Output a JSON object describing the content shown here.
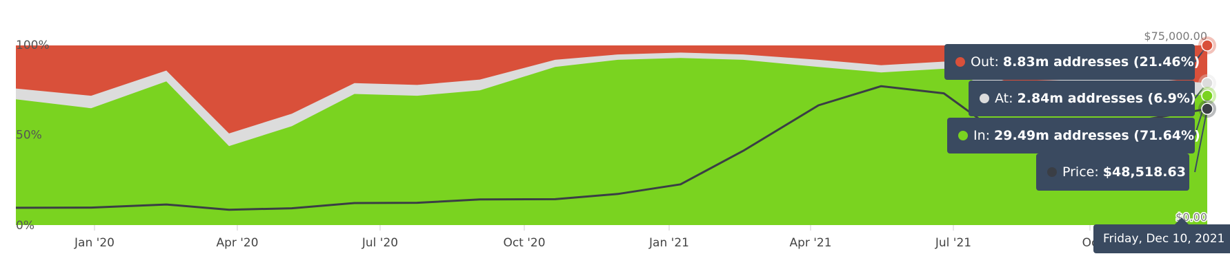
{
  "chart_data": {
    "type": "area",
    "stacking": "percent",
    "x_ticks": [
      "Jan '20",
      "Apr '20",
      "Jul '20",
      "Oct '20",
      "Jan '21",
      "Apr '21",
      "Jul '21",
      "Oc"
    ],
    "y_ticks_left": [
      "0%",
      "50%",
      "100%"
    ],
    "y_ticks_right": [
      "$0.00",
      "$75,000.00"
    ],
    "ylim_right": [
      0,
      75000
    ],
    "legend_placement": "tooltip-right",
    "x_weeks": [
      0,
      6,
      12,
      17,
      22,
      27,
      32,
      37,
      43,
      48,
      53,
      58,
      64,
      69,
      74,
      79,
      84,
      90,
      95
    ],
    "in_pct": [
      70,
      65,
      80,
      44,
      55,
      73,
      72,
      75,
      88,
      92,
      93,
      92,
      88,
      85,
      87,
      73,
      74,
      75,
      72
    ],
    "at_pct": [
      6,
      7,
      6,
      7,
      7,
      6,
      6,
      6,
      4,
      3,
      3,
      3,
      4,
      4,
      4,
      7,
      7,
      7,
      7
    ],
    "price": [
      7200,
      7300,
      8600,
      6400,
      7000,
      9200,
      9300,
      10700,
      10800,
      13000,
      17000,
      31000,
      50000,
      58000,
      55000,
      36000,
      33000,
      44000,
      48518.63
    ],
    "colors": {
      "out": "#d9503a",
      "at": "#dcdcdc",
      "in": "#7ad320",
      "price": "#3a3e45"
    },
    "tooltip": {
      "out": {
        "label": "Out:",
        "value": "8.83m addresses (21.46%)",
        "color": "#d9503a"
      },
      "at": {
        "label": "At:",
        "value": "2.84m addresses (6.9%)",
        "color": "#dcdcdc"
      },
      "in": {
        "label": "In:",
        "value": "29.49m addresses (71.64%)",
        "color": "#7ad320"
      },
      "price": {
        "label": "Price:",
        "value": "$48,518.63",
        "color": "#3a3e45"
      }
    },
    "hover_date": "Friday, Dec 10, 2021"
  }
}
